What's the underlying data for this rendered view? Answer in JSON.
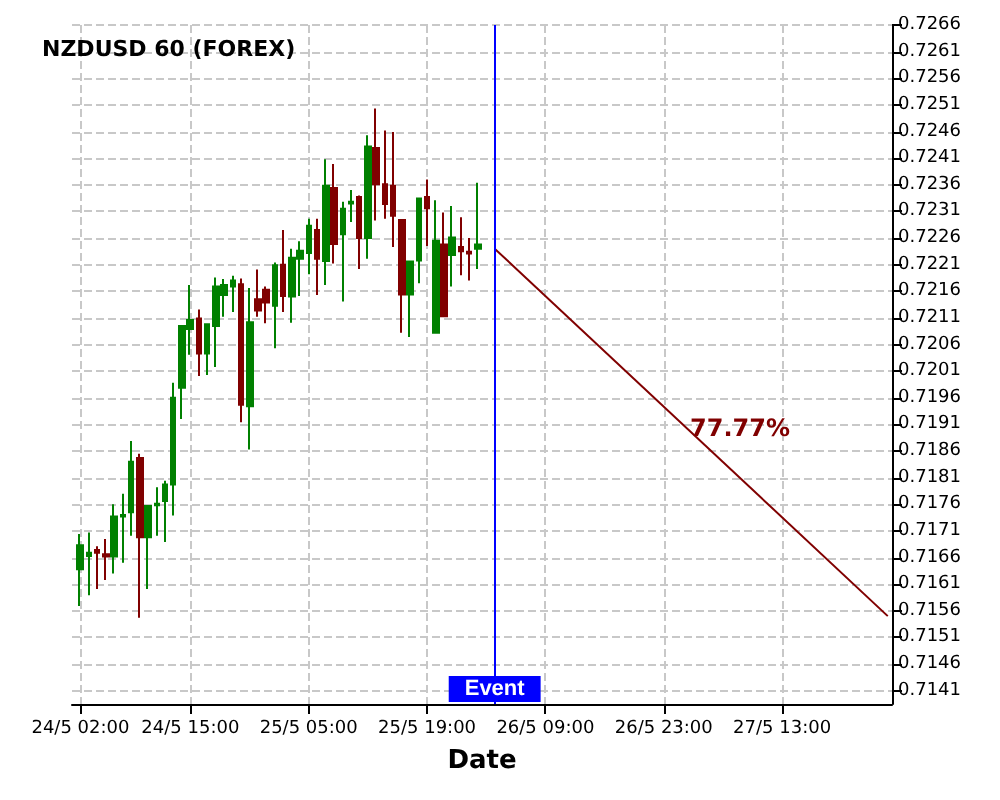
{
  "chart_data": {
    "type": "candlestick",
    "title": "NZDUSD 60 (FOREX)",
    "xlabel": "Date",
    "x": [
      "--05-24T02:00",
      "--05-24T03:00",
      "--05-24T04:00",
      "--05-24T05:00",
      "--05-24T06:00",
      "--05-24T07:00",
      "--05-24T08:00",
      "--05-24T09:00",
      "--05-24T10:00",
      "--05-24T11:00",
      "--05-24T12:00",
      "--05-24T13:00",
      "--05-24T14:00",
      "--05-24T15:00",
      "--05-24T16:00",
      "--05-24T17:00",
      "--05-24T18:00",
      "--05-24T19:00",
      "--05-24T20:00",
      "--05-24T21:00",
      "--05-24T22:00",
      "--05-24T23:00",
      "--05-25T00:00",
      "--05-25T01:00",
      "--05-25T02:00",
      "--05-25T03:00",
      "--05-25T04:00",
      "--05-25T05:00",
      "--05-25T06:00",
      "--05-25T07:00",
      "--05-25T08:00",
      "--05-25T09:00",
      "--05-25T10:00",
      "--05-25T11:00",
      "--05-25T12:00",
      "--05-25T13:00",
      "--05-25T14:00",
      "--05-25T15:00",
      "--05-25T16:00",
      "--05-25T17:00",
      "--05-25T18:00",
      "--05-25T19:00",
      "--05-25T20:00",
      "--05-25T21:00",
      "--05-25T22:00",
      "--05-25T23:00",
      "--05-26T00:00",
      "--05-26T01:00"
    ],
    "ohlc": [
      [
        0.71638,
        0.71704,
        0.71569,
        0.71683
      ],
      [
        0.71663,
        0.71707,
        0.71589,
        0.71669
      ],
      [
        0.71674,
        0.71681,
        0.71601,
        0.71669
      ],
      [
        0.71666,
        0.71695,
        0.71618,
        0.71662
      ],
      [
        0.71662,
        0.7176,
        0.7163,
        0.71737
      ],
      [
        0.71737,
        0.7178,
        0.7165,
        0.7174
      ],
      [
        0.71745,
        0.71879,
        0.71701,
        0.7184
      ],
      [
        0.71847,
        0.71855,
        0.71547,
        0.71698
      ],
      [
        0.71698,
        0.71757,
        0.71601,
        0.71757
      ],
      [
        0.71758,
        0.71792,
        0.71701,
        0.71761
      ],
      [
        0.71766,
        0.71804,
        0.71689,
        0.71797
      ],
      [
        0.71797,
        0.71988,
        0.71739,
        0.7196
      ],
      [
        0.71979,
        0.72095,
        0.7192,
        0.72095
      ],
      [
        0.72089,
        0.72172,
        0.72041,
        0.72106
      ],
      [
        0.72109,
        0.72126,
        0.72001,
        0.72043
      ],
      [
        0.72043,
        0.72098,
        0.72003,
        0.72098
      ],
      [
        0.72095,
        0.72186,
        0.72018,
        0.72169
      ],
      [
        0.72153,
        0.72183,
        0.72112,
        0.72172
      ],
      [
        0.72169,
        0.72189,
        0.72121,
        0.7218
      ],
      [
        0.72173,
        0.72184,
        0.71914,
        0.71947
      ],
      [
        0.71944,
        0.72166,
        0.71863,
        0.72102
      ],
      [
        0.72145,
        0.72201,
        0.72112,
        0.72124
      ],
      [
        0.72163,
        0.72169,
        0.721,
        0.72139
      ],
      [
        0.72133,
        0.72214,
        0.72053,
        0.72209
      ],
      [
        0.7221,
        0.72275,
        0.72121,
        0.72151
      ],
      [
        0.7215,
        0.7224,
        0.72101,
        0.72223
      ],
      [
        0.72221,
        0.72254,
        0.72151,
        0.72236
      ],
      [
        0.72232,
        0.72296,
        0.72192,
        0.72283
      ],
      [
        0.72275,
        0.72296,
        0.72153,
        0.72221
      ],
      [
        0.72217,
        0.72408,
        0.72172,
        0.72358
      ],
      [
        0.72354,
        0.72399,
        0.72212,
        0.72249
      ],
      [
        0.72267,
        0.72328,
        0.72141,
        0.72315
      ],
      [
        0.72325,
        0.7235,
        0.7229,
        0.72328
      ],
      [
        0.72337,
        0.7234,
        0.72202,
        0.7226
      ],
      [
        0.7226,
        0.72453,
        0.72221,
        0.72432
      ],
      [
        0.72429,
        0.72503,
        0.72293,
        0.72361
      ],
      [
        0.72361,
        0.72462,
        0.72296,
        0.72324
      ],
      [
        0.72358,
        0.72459,
        0.72243,
        0.72302
      ],
      [
        0.72294,
        0.72294,
        0.72082,
        0.72154
      ],
      [
        0.72154,
        0.72216,
        0.72074,
        0.72216
      ],
      [
        0.72218,
        0.72334,
        0.72175,
        0.72334
      ],
      [
        0.72337,
        0.7237,
        0.72245,
        0.72316
      ],
      [
        0.72082,
        0.72331,
        0.72082,
        0.72255
      ],
      [
        0.72248,
        0.72308,
        0.72113,
        0.72113
      ],
      [
        0.72228,
        0.7232,
        0.72169,
        0.72261
      ],
      [
        0.72243,
        0.72299,
        0.7219,
        0.72235
      ],
      [
        0.72234,
        0.7226,
        0.7218,
        0.72231
      ],
      [
        0.7224,
        0.72364,
        0.72202,
        0.72248
      ]
    ],
    "colors": [
      "#008000",
      "#008000",
      "#800000",
      "#800000",
      "#008000",
      "#008000",
      "#008000",
      "#800000",
      "#008000",
      "#008000",
      "#008000",
      "#008000",
      "#008000",
      "#008000",
      "#800000",
      "#008000",
      "#008000",
      "#008000",
      "#008000",
      "#800000",
      "#008000",
      "#800000",
      "#800000",
      "#008000",
      "#800000",
      "#008000",
      "#008000",
      "#008000",
      "#800000",
      "#008000",
      "#800000",
      "#008000",
      "#008000",
      "#800000",
      "#008000",
      "#800000",
      "#800000",
      "#800000",
      "#800000",
      "#008000",
      "#008000",
      "#800000",
      "#008000",
      "#800000",
      "#008000",
      "#800000",
      "#800000",
      "#008000"
    ],
    "series": [
      {
        "type": "line",
        "color": "#800000",
        "x": [
          "--05-26T03:00",
          "--05-28T01:30"
        ],
        "values": [
          0.7224,
          0.7155
        ]
      }
    ],
    "xlim": [
      "--05-24T01:00",
      "--05-28T02:00"
    ],
    "xticks": [
      {
        "value": "--05-24T02:00",
        "label": "24/5 02:00"
      },
      {
        "value": "--05-24T15:00",
        "label": "24/5 15:00"
      },
      {
        "value": "--05-25T05:00",
        "label": "25/5 05:00"
      },
      {
        "value": "--05-25T19:00",
        "label": "25/5 19:00"
      },
      {
        "value": "--05-26T09:00",
        "label": "26/5 09:00"
      },
      {
        "value": "--05-26T23:00",
        "label": "26/5 23:00"
      },
      {
        "value": "--05-27T13:00",
        "label": "27/5 13:00"
      }
    ],
    "ylim": [
      0.71385,
      0.7266
    ],
    "yticks": [
      0.7141,
      0.7146,
      0.7151,
      0.7156,
      0.7161,
      0.7166,
      0.7171,
      0.7176,
      0.7181,
      0.7186,
      0.7191,
      0.7196,
      0.7201,
      0.7206,
      0.7211,
      0.7216,
      0.7221,
      0.7226,
      0.7231,
      0.7236,
      0.7241,
      0.7246,
      0.7251,
      0.7256,
      0.7261,
      0.7266
    ],
    "grid": true,
    "ref_lines": [
      {
        "axis": "x",
        "value": "--05-26T03:00",
        "label": "Event",
        "color": "#0000ff"
      }
    ],
    "annotations": [
      "77.77%"
    ]
  }
}
